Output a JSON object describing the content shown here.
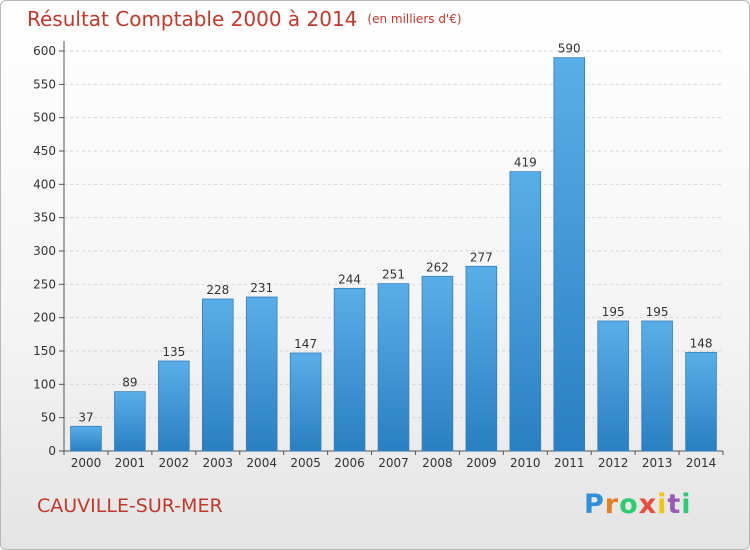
{
  "header": {
    "title": "Résultat Comptable 2000 à 2014",
    "subtitle": "(en milliers d'€)"
  },
  "footer": {
    "town": "CAUVILLE-SUR-MER",
    "logo": "Proxiti"
  },
  "colors": {
    "title": "#c0392b",
    "bar_light": "#5aaee8",
    "bar_dark": "#2a7fc2"
  },
  "chart_data": {
    "type": "bar",
    "categories": [
      "2000",
      "2001",
      "2002",
      "2003",
      "2004",
      "2005",
      "2006",
      "2007",
      "2008",
      "2009",
      "2010",
      "2011",
      "2012",
      "2013",
      "2014"
    ],
    "values": [
      37,
      89,
      135,
      228,
      231,
      147,
      244,
      251,
      262,
      277,
      419,
      590,
      195,
      195,
      148
    ],
    "data_labels": [
      "37",
      "89",
      "135",
      "228",
      "231",
      "147",
      "244",
      "251",
      "262",
      "277",
      "419",
      "590",
      "195",
      "195",
      "148"
    ],
    "y_ticks": [
      "0",
      "50",
      "100",
      "150",
      "200",
      "250",
      "300",
      "350",
      "400",
      "450",
      "500",
      "550",
      "600"
    ],
    "ylim": [
      0,
      600
    ],
    "grid": true,
    "legend": "none"
  }
}
